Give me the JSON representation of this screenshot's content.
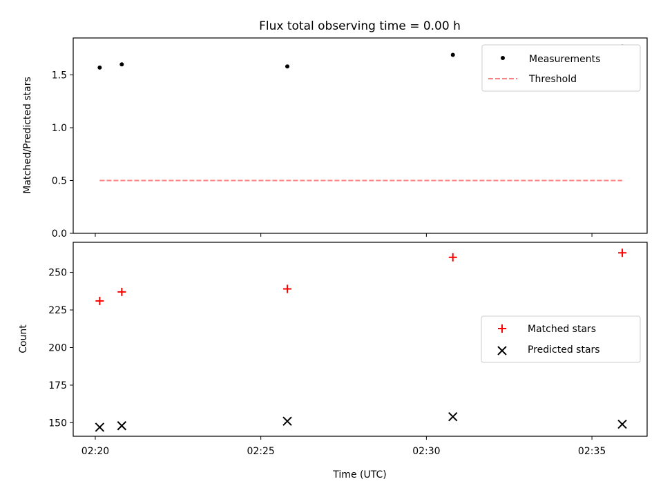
{
  "title": "Flux total observing time = 0.00 h",
  "chart_data": [
    {
      "type": "scatter",
      "ylabel": "Matched/Predicted stars",
      "xlim": [
        "02:19:20",
        "02:36:40"
      ],
      "ylim": [
        0,
        1.85
      ],
      "yticks": [
        0.0,
        0.5,
        1.0,
        1.5
      ],
      "ytick_labels": [
        "0.0",
        "0.5",
        "1.0",
        "1.5"
      ],
      "grid": false,
      "legend_position": "top-right",
      "series": [
        {
          "name": "Measurements",
          "marker": "dot",
          "color": "#000000",
          "x": [
            "02:20:08",
            "02:20:48",
            "02:25:48",
            "02:30:48",
            "02:35:55"
          ],
          "y": [
            1.57,
            1.6,
            1.58,
            1.69,
            1.77
          ]
        },
        {
          "name": "Threshold",
          "line": "dashed",
          "color": "#ff8080",
          "x": [
            "02:20:08",
            "02:35:55"
          ],
          "y": [
            0.5,
            0.5
          ]
        }
      ]
    },
    {
      "type": "scatter",
      "xlabel": "Time (UTC)",
      "ylabel": "Count",
      "xlim": [
        "02:19:20",
        "02:36:40"
      ],
      "ylim": [
        141,
        270
      ],
      "xticks": [
        "02:20",
        "02:25",
        "02:30",
        "02:35"
      ],
      "yticks": [
        150,
        175,
        200,
        225,
        250
      ],
      "ytick_labels": [
        "150",
        "175",
        "200",
        "225",
        "250"
      ],
      "grid": false,
      "legend_position": "center-right",
      "series": [
        {
          "name": "Matched stars",
          "marker": "plus",
          "color": "#ff0000",
          "x": [
            "02:20:08",
            "02:20:48",
            "02:25:48",
            "02:30:48",
            "02:35:55"
          ],
          "y": [
            231,
            237,
            239,
            260,
            263
          ]
        },
        {
          "name": "Predicted stars",
          "marker": "x",
          "color": "#000000",
          "x": [
            "02:20:08",
            "02:20:48",
            "02:25:48",
            "02:30:48",
            "02:35:55"
          ],
          "y": [
            147,
            148,
            151,
            154,
            149
          ]
        }
      ]
    }
  ]
}
